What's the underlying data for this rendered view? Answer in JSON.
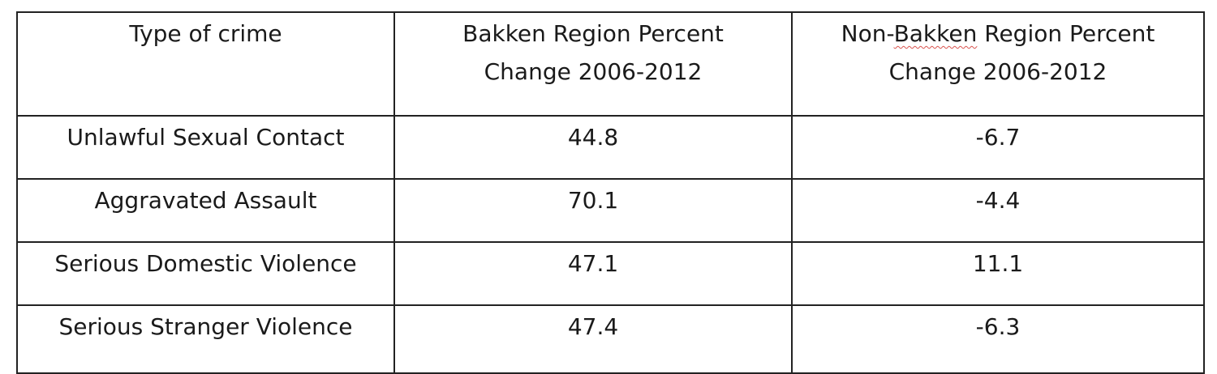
{
  "table": {
    "headers": [
      {
        "line1": "Type of crime",
        "line2": ""
      },
      {
        "line1": "Bakken Region Percent",
        "line2": "Change 2006-2012"
      },
      {
        "line1_prefix": "Non-",
        "line1_flagged": "Bakken",
        "line1_suffix": " Region Percent",
        "line2": "Change 2006-2012"
      }
    ],
    "rows": [
      {
        "crime": "Unlawful Sexual Contact",
        "bakken": "44.8",
        "non_bakken": "-6.7"
      },
      {
        "crime": "Aggravated Assault",
        "bakken": "70.1",
        "non_bakken": "-4.4"
      },
      {
        "crime": "Serious Domestic Violence",
        "bakken": "47.1",
        "non_bakken": "11.1"
      },
      {
        "crime": "Serious Stranger Violence",
        "bakken": "47.4",
        "non_bakken": "-6.3"
      }
    ]
  },
  "colors": {
    "border": "#222222",
    "text": "#1a1a1a",
    "spellcheck_underline": "#d9534f"
  }
}
